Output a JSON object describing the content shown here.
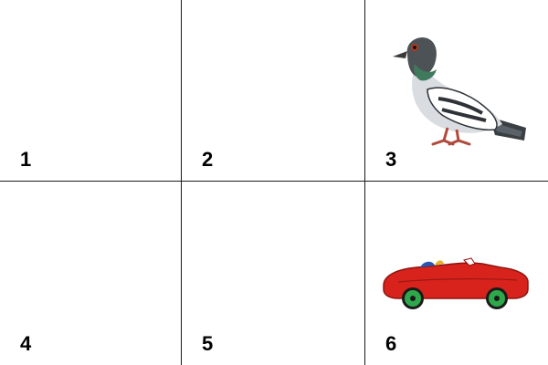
{
  "cells": [
    {
      "number": "1"
    },
    {
      "number": "2"
    },
    {
      "number": "3",
      "picture": "pigeon"
    },
    {
      "number": "4"
    },
    {
      "number": "5"
    },
    {
      "number": "6",
      "picture": "red-convertible-car"
    }
  ]
}
